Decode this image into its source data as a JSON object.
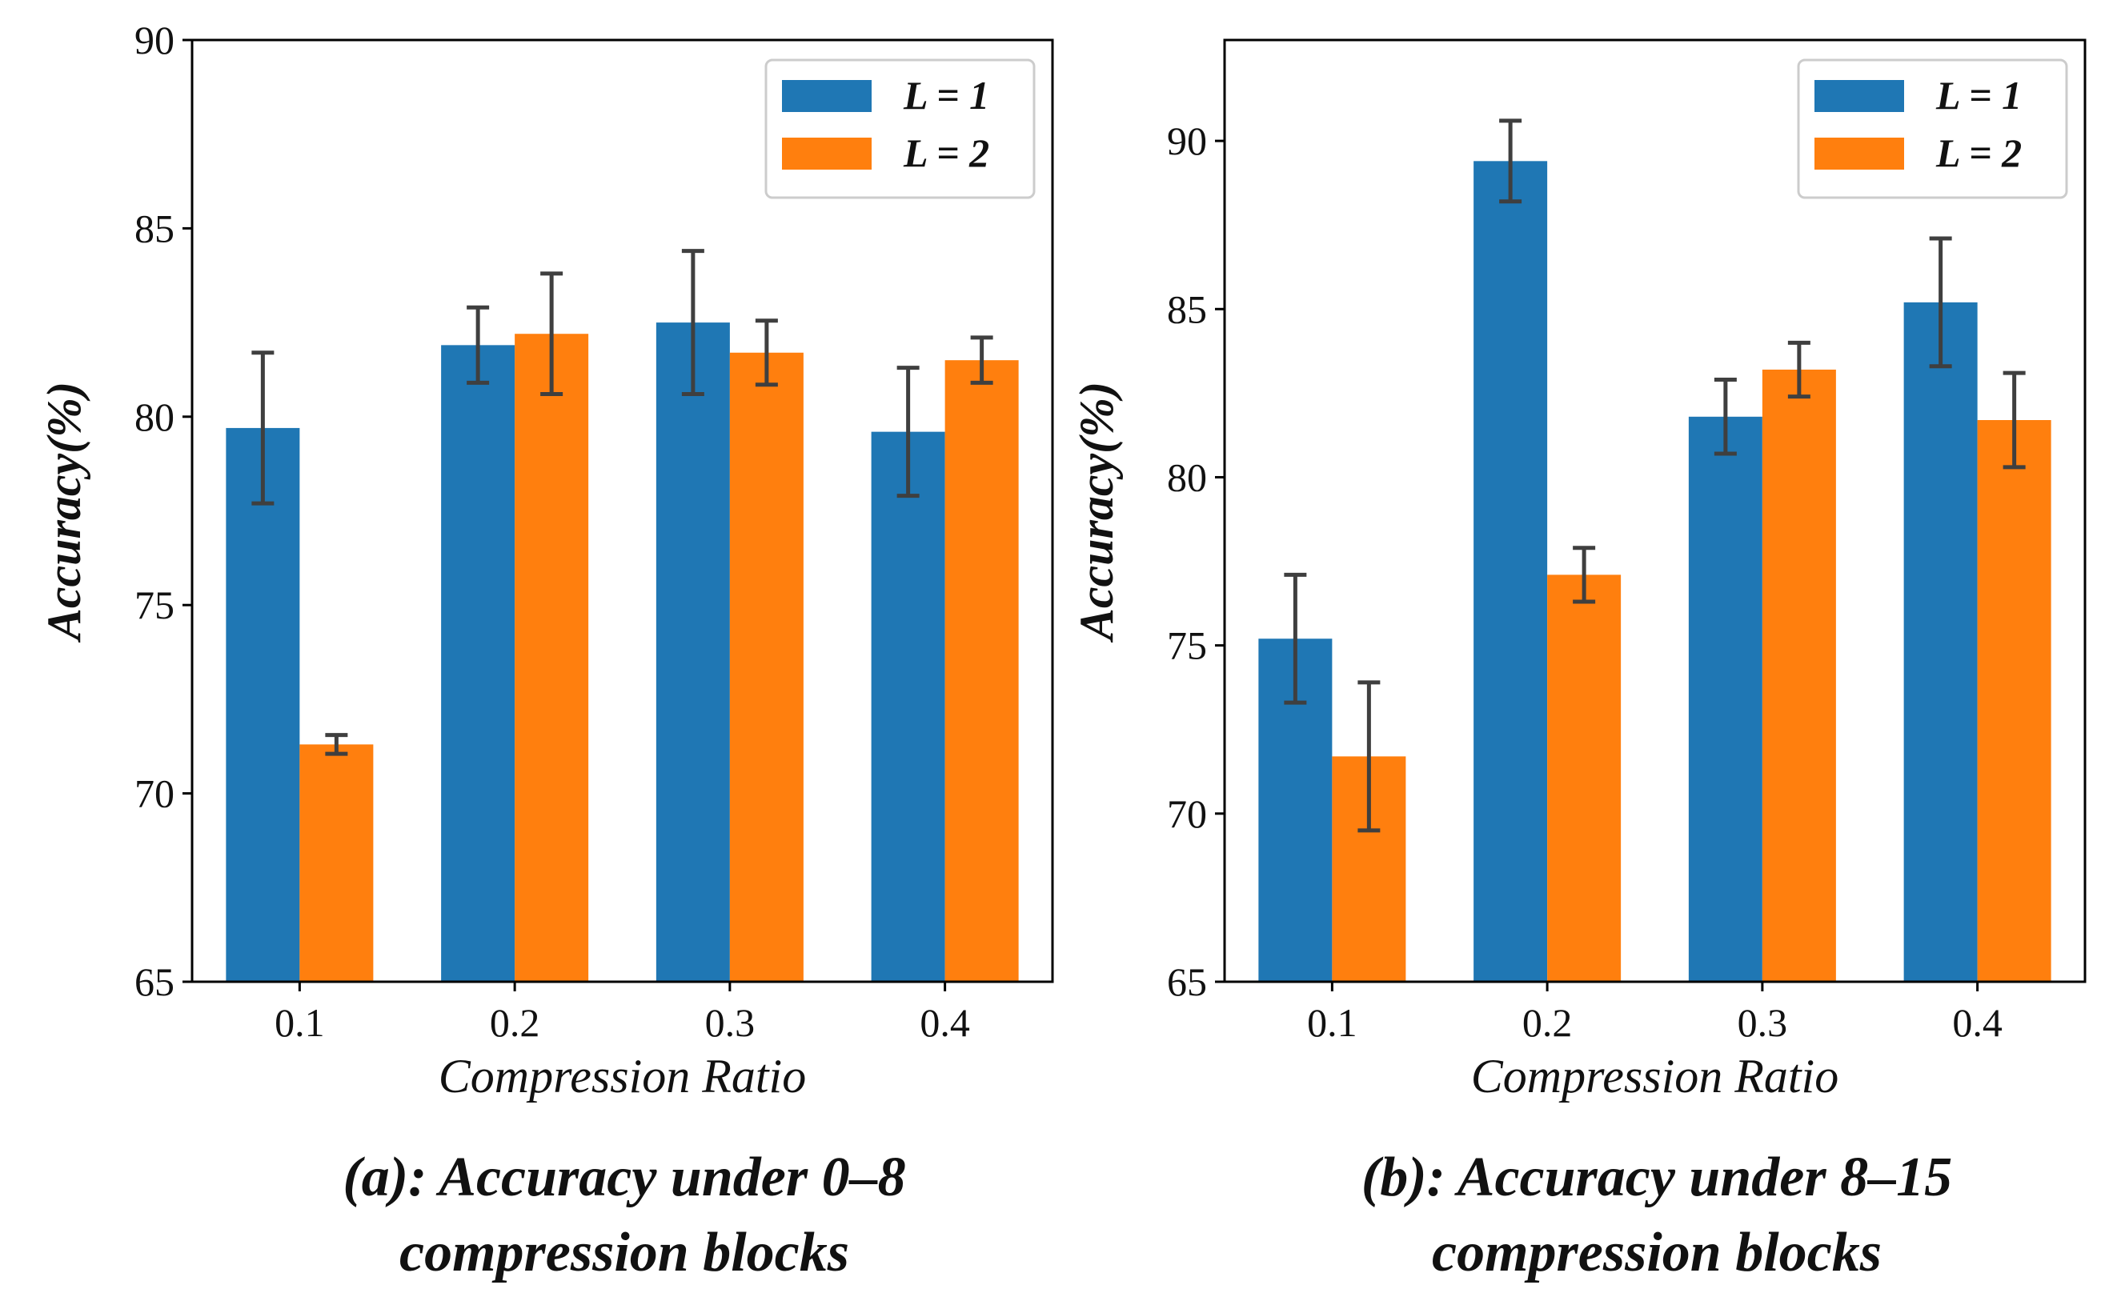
{
  "colors": {
    "series1": "#1f77b4",
    "series2": "#ff7f0e",
    "errorbar": "#3f3f3f",
    "axis": "#000000"
  },
  "chart_data": [
    {
      "type": "bar",
      "xlabel": "Compression Ratio",
      "ylabel": "Accuracy(%)",
      "categories": [
        "0.1",
        "0.2",
        "0.3",
        "0.4"
      ],
      "ylim": [
        65,
        90
      ],
      "yticks": [
        "65",
        "70",
        "75",
        "80",
        "85",
        "90"
      ],
      "ytick_values": [
        65,
        70,
        75,
        80,
        85,
        90
      ],
      "legend_position": "top-right",
      "series": [
        {
          "name": "L = 1",
          "values": [
            79.7,
            81.9,
            82.5,
            79.6
          ],
          "errors": [
            2.0,
            1.0,
            1.9,
            1.7
          ]
        },
        {
          "name": "L = 2",
          "values": [
            71.3,
            82.2,
            81.7,
            81.5
          ],
          "errors": [
            0.25,
            1.6,
            0.85,
            0.6
          ]
        }
      ],
      "caption_line1": "(a): Accuracy under 0–8",
      "caption_line2": "compression blocks"
    },
    {
      "type": "bar",
      "xlabel": "Compression Ratio",
      "ylabel": "Accuracy(%)",
      "categories": [
        "0.1",
        "0.2",
        "0.3",
        "0.4"
      ],
      "ylim": [
        65,
        93
      ],
      "yticks": [
        "65",
        "70",
        "75",
        "80",
        "85",
        "90"
      ],
      "ytick_values": [
        65,
        70,
        75,
        80,
        85,
        90
      ],
      "legend_position": "top-right",
      "series": [
        {
          "name": "L = 1",
          "values": [
            75.2,
            89.4,
            81.8,
            85.2
          ],
          "errors": [
            1.9,
            1.2,
            1.1,
            1.9
          ]
        },
        {
          "name": "L = 2",
          "values": [
            71.7,
            77.1,
            83.2,
            81.7
          ],
          "errors": [
            2.2,
            0.8,
            0.8,
            1.4
          ]
        }
      ],
      "caption_line1": "(b): Accuracy under 8–15",
      "caption_line2": "compression blocks"
    }
  ]
}
